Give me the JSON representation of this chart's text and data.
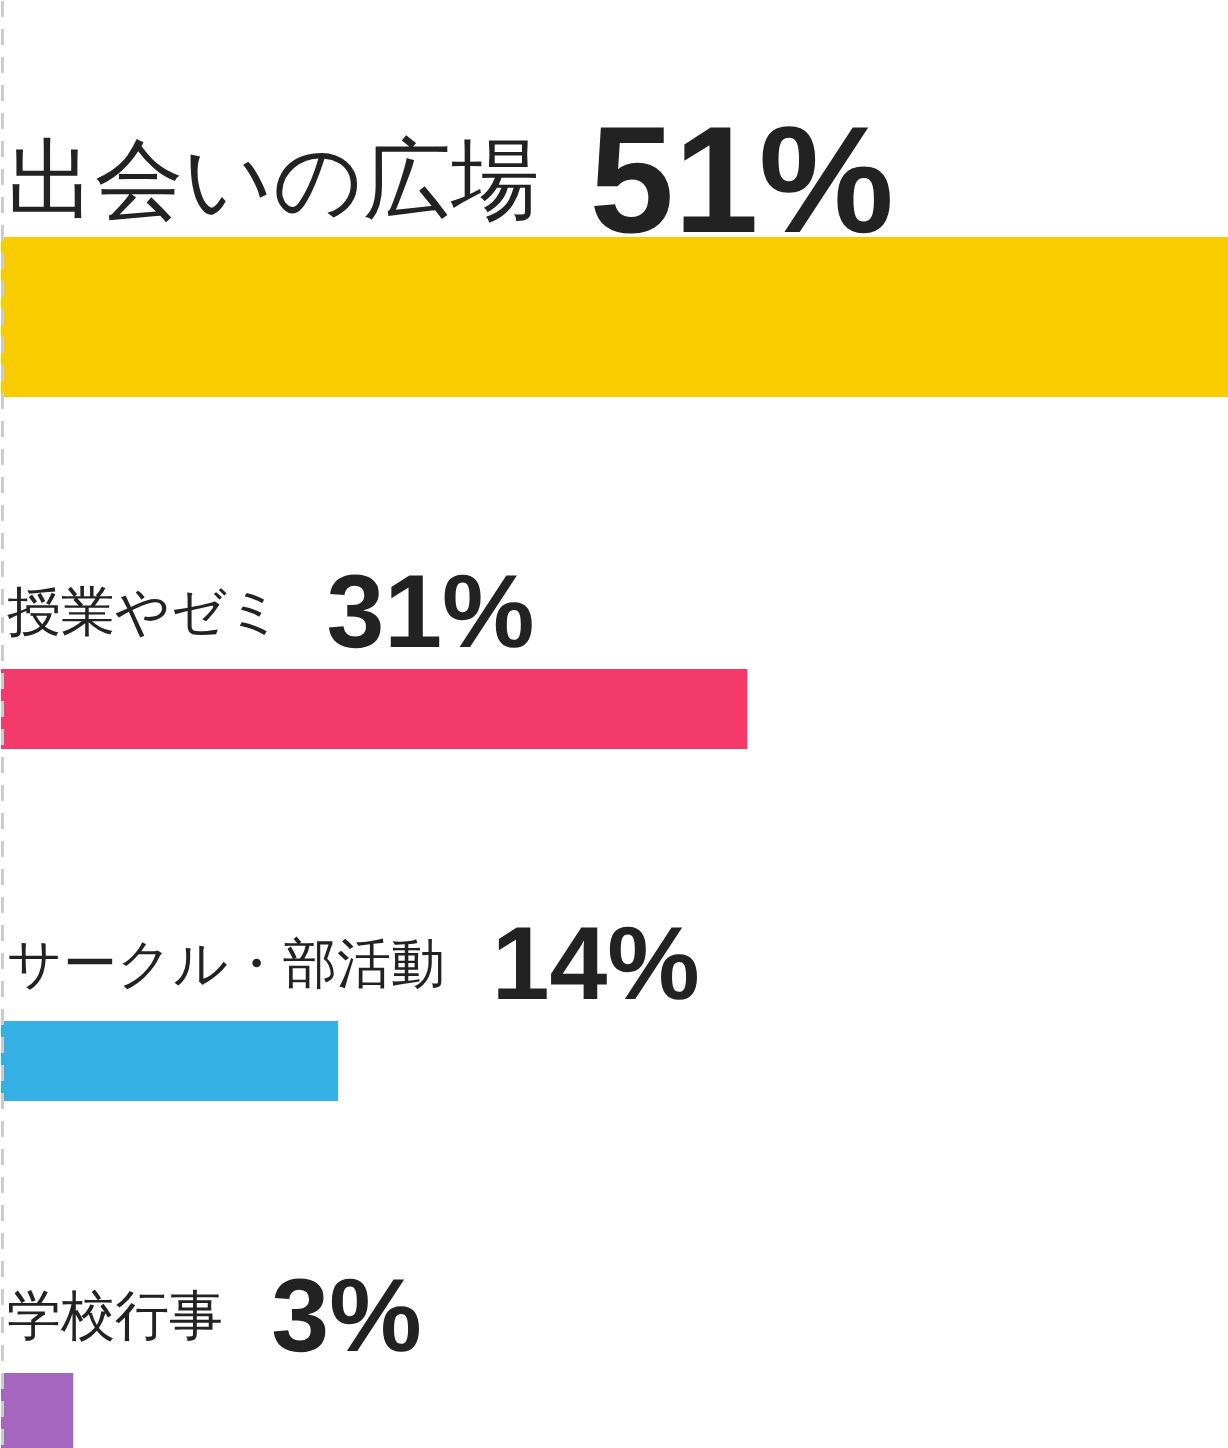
{
  "chart_data": {
    "type": "bar",
    "orientation": "horizontal",
    "categories": [
      "出会いの広場",
      "授業やゼミ",
      "サークル・部活動",
      "学校行事"
    ],
    "values": [
      51,
      31,
      14,
      3
    ],
    "colors": [
      "#f9cc00",
      "#f43a6b",
      "#35b0e5",
      "#a566bf"
    ],
    "value_labels": [
      "51%",
      "31%",
      "14%",
      "3%"
    ]
  }
}
